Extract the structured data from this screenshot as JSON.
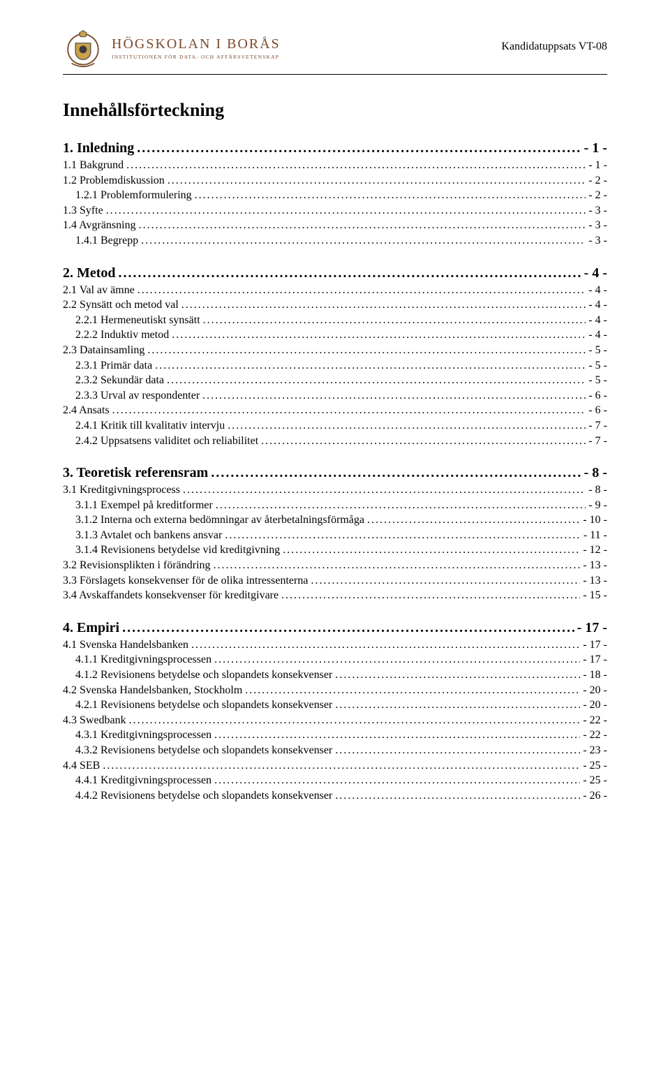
{
  "header": {
    "logo_title": "HÖGSKOLAN I BORÅS",
    "logo_sub": "INSTITUTIONEN FÖR DATA- OCH AFFÄRSVETENSKAP",
    "right_text": "Kandidatuppsats VT-08",
    "crest_colors": {
      "shield": "#c9a24a",
      "border": "#3a3a3a",
      "ribbon": "#7a4a2a"
    }
  },
  "title": "Innehållsförteckning",
  "colors": {
    "text": "#000000",
    "accent": "#7a4a2a",
    "bg": "#ffffff"
  },
  "typography": {
    "body_family": "Times New Roman",
    "l1_pt": 20,
    "l2_pt": 16,
    "title_pt": 26
  },
  "sections": [
    {
      "heading": {
        "label": "1. Inledning",
        "page": "- 1 -"
      },
      "items": [
        {
          "level": 2,
          "label": "1.1 Bakgrund",
          "page": "- 1 -"
        },
        {
          "level": 2,
          "label": "1.2 Problemdiskussion",
          "page": "- 2 -"
        },
        {
          "level": 3,
          "label": "1.2.1 Problemformulering",
          "page": "- 2 -"
        },
        {
          "level": 2,
          "label": "1.3 Syfte",
          "page": "- 3 -"
        },
        {
          "level": 2,
          "label": "1.4 Avgränsning",
          "page": "- 3 -"
        },
        {
          "level": 3,
          "label": "1.4.1 Begrepp",
          "page": "- 3 -"
        }
      ]
    },
    {
      "heading": {
        "label": "2. Metod",
        "page": "- 4 -"
      },
      "items": [
        {
          "level": 2,
          "label": "2.1 Val av ämne",
          "page": "- 4 -"
        },
        {
          "level": 2,
          "label": "2.2 Synsätt och metod val",
          "page": "- 4 -"
        },
        {
          "level": 3,
          "label": "2.2.1 Hermeneutiskt synsätt",
          "page": "- 4 -"
        },
        {
          "level": 3,
          "label": "2.2.2 Induktiv metod",
          "page": "- 4 -"
        },
        {
          "level": 2,
          "label": "2.3 Datainsamling",
          "page": "- 5 -"
        },
        {
          "level": 3,
          "label": "2.3.1 Primär data",
          "page": "- 5 -"
        },
        {
          "level": 3,
          "label": "2.3.2 Sekundär data",
          "page": "- 5 -"
        },
        {
          "level": 3,
          "label": "2.3.3 Urval av respondenter",
          "page": "- 6 -"
        },
        {
          "level": 2,
          "label": "2.4 Ansats",
          "page": "- 6 -"
        },
        {
          "level": 3,
          "label": "2.4.1 Kritik till kvalitativ intervju",
          "page": "- 7 -"
        },
        {
          "level": 3,
          "label": "2.4.2 Uppsatsens validitet och reliabilitet",
          "page": "- 7 -"
        }
      ]
    },
    {
      "heading": {
        "label": "3. Teoretisk referensram",
        "page": "- 8 -"
      },
      "items": [
        {
          "level": 2,
          "label": "3.1 Kreditgivningsprocess",
          "page": "- 8 -"
        },
        {
          "level": 3,
          "label": "3.1.1 Exempel på kreditformer",
          "page": "- 9 -"
        },
        {
          "level": 3,
          "label": "3.1.2 Interna och externa bedömningar av återbetalningsförmåga",
          "page": "- 10 -"
        },
        {
          "level": 3,
          "label": "3.1.3 Avtalet och bankens ansvar",
          "page": "- 11 -"
        },
        {
          "level": 3,
          "label": "3.1.4 Revisionens betydelse vid kreditgivning",
          "page": "- 12 -"
        },
        {
          "level": 2,
          "label": "3.2 Revisionsplikten i förändring",
          "page": "- 13 -"
        },
        {
          "level": 2,
          "label": "3.3 Förslagets konsekvenser för de olika intressenterna",
          "page": "- 13 -"
        },
        {
          "level": 2,
          "label": "3.4 Avskaffandets konsekvenser för kreditgivare",
          "page": "- 15 -"
        }
      ]
    },
    {
      "heading": {
        "label": "4. Empiri",
        "page": "- 17 -"
      },
      "items": [
        {
          "level": 2,
          "label": "4.1 Svenska Handelsbanken",
          "page": "- 17 -"
        },
        {
          "level": 3,
          "label": "4.1.1 Kreditgivningsprocessen",
          "page": "- 17 -"
        },
        {
          "level": 3,
          "label": "4.1.2 Revisionens betydelse och slopandets konsekvenser",
          "page": "- 18 -"
        },
        {
          "level": 2,
          "label": "4.2 Svenska Handelsbanken, Stockholm",
          "page": "- 20 -"
        },
        {
          "level": 3,
          "label": "4.2.1 Revisionens betydelse och slopandets konsekvenser",
          "page": "- 20 -"
        },
        {
          "level": 2,
          "label": "4.3 Swedbank",
          "page": "- 22 -"
        },
        {
          "level": 3,
          "label": "4.3.1 Kreditgivningsprocessen",
          "page": "- 22 -"
        },
        {
          "level": 3,
          "label": "4.3.2 Revisionens betydelse och slopandets konsekvenser",
          "page": "- 23 -"
        },
        {
          "level": 2,
          "label": "4.4 SEB",
          "page": "- 25 -"
        },
        {
          "level": 3,
          "label": "4.4.1 Kreditgivningsprocessen",
          "page": "- 25 -"
        },
        {
          "level": 3,
          "label": "4.4.2 Revisionens betydelse och slopandets konsekvenser",
          "page": "- 26 -"
        }
      ]
    }
  ]
}
